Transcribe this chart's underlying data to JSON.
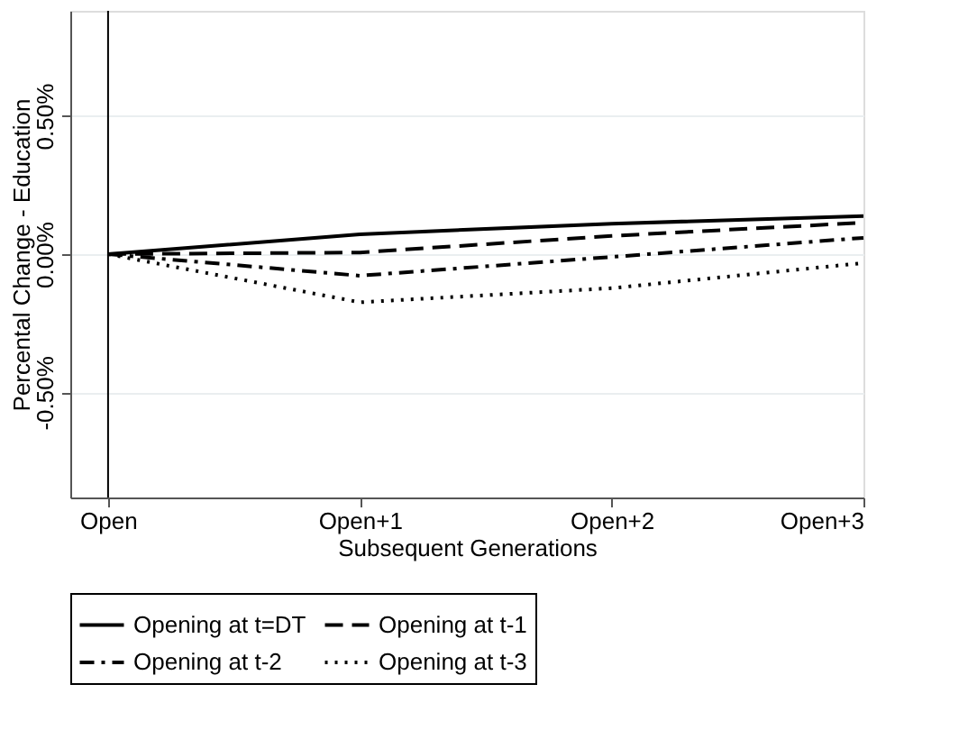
{
  "chart_data": {
    "type": "line",
    "xlabel": "Subsequent Generations",
    "ylabel": "Percental Change - Education",
    "categories": [
      "Open",
      "Open+1",
      "Open+2",
      "Open+3"
    ],
    "series": [
      {
        "name": "Opening at t=DT",
        "color": "#000000",
        "line_style": "solid",
        "values": [
          0,
          0.072,
          0.11,
          0.138
        ]
      },
      {
        "name": "Opening at t-1",
        "color": "#000000",
        "line_style": "dashed",
        "values": [
          0,
          0.006,
          0.066,
          0.114
        ]
      },
      {
        "name": "Opening at t-2",
        "color": "#000000",
        "line_style": "dashdot",
        "values": [
          0,
          -0.078,
          -0.01,
          0.059
        ]
      },
      {
        "name": "Opening at t-3",
        "color": "#000000",
        "line_style": "dotted",
        "values": [
          0,
          -0.174,
          -0.123,
          -0.032
        ]
      }
    ],
    "ylim": [
      -0.88,
      0.88
    ],
    "yticks": [
      {
        "value": -0.5,
        "label": "-0.50%"
      },
      {
        "value": 0,
        "label": "0.00%"
      },
      {
        "value": 0.5,
        "label": "0.50%"
      }
    ],
    "ref_lines": [
      {
        "axis": "x",
        "value": "Open"
      }
    ],
    "grid": "y",
    "legend": "bottom",
    "marker": "none"
  }
}
